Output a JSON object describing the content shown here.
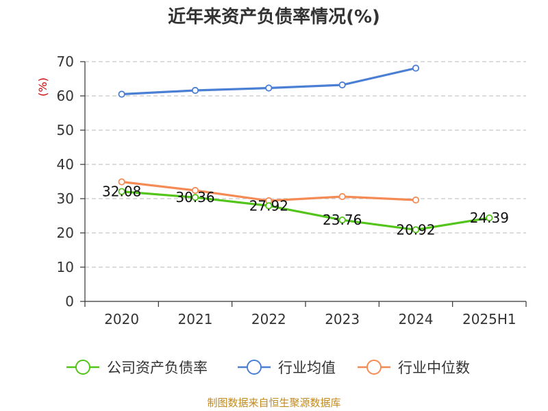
{
  "chart_data": {
    "type": "line",
    "title": "近年来资产负债率情况(%)",
    "ylabel": "(%)",
    "categories": [
      "2020",
      "2021",
      "2022",
      "2023",
      "2024",
      "2025H1"
    ],
    "ylim": [
      0,
      70
    ],
    "yticks": [
      0,
      10,
      20,
      30,
      40,
      50,
      60,
      70
    ],
    "grid": true,
    "legend_position": "bottom",
    "series": [
      {
        "name": "公司资产负债率",
        "color": "#52c41a",
        "values": [
          32.08,
          30.36,
          27.92,
          23.76,
          20.92,
          24.39
        ],
        "labels": [
          "32.08",
          "30.36",
          "27.92",
          "23.76",
          "20.92",
          "24.39"
        ]
      },
      {
        "name": "行业均值",
        "color": "#4a7fd4",
        "values": [
          60.5,
          61.6,
          62.3,
          63.2,
          68.1,
          null
        ]
      },
      {
        "name": "行业中位数",
        "color": "#f48b55",
        "values": [
          34.9,
          32.4,
          29.4,
          30.6,
          29.6,
          null
        ]
      }
    ]
  },
  "source_text": "制图数据来自恒生聚源数据库",
  "colors": {
    "ylabel": "#cc0000",
    "source": "#c08a20",
    "grid": "#c8c8c8",
    "axis": "#333333"
  }
}
